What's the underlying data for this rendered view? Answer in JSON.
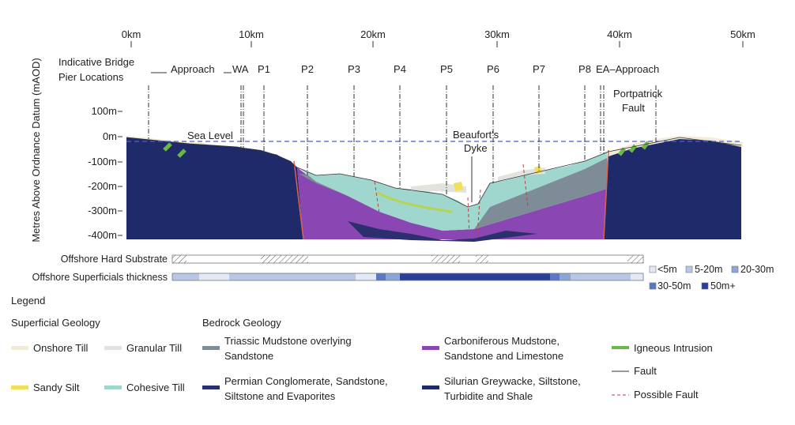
{
  "xaxis": {
    "ticks": [
      {
        "label": "0km",
        "km": 0
      },
      {
        "label": "10km",
        "km": 10
      },
      {
        "label": "20km",
        "km": 20
      },
      {
        "label": "30km",
        "km": 30
      },
      {
        "label": "40km",
        "km": 40
      },
      {
        "label": "50km",
        "km": 50
      }
    ]
  },
  "yaxis": {
    "label": "Metres Above Ordnance Datum (mAOD)",
    "ticks": [
      {
        "label": "100m",
        "value": 100
      },
      {
        "label": "0m",
        "value": 0
      },
      {
        "label": "-100m",
        "value": -100
      },
      {
        "label": "-200m",
        "value": -200
      },
      {
        "label": "-300m",
        "value": -300
      },
      {
        "label": "-400m",
        "value": -400
      }
    ]
  },
  "piers": {
    "title_line1": "Indicative Bridge",
    "title_line2": "Pier Locations",
    "approach_west": "Approach",
    "wa": "WA",
    "items": [
      "P1",
      "P2",
      "P3",
      "P4",
      "P5",
      "P6",
      "P7",
      "P8"
    ],
    "ea_approach": "EA–Approach"
  },
  "annotations": {
    "sea_level": "Sea Level",
    "beauforts_line1": "Beaufort's",
    "beauforts_line2": "Dyke",
    "portpatrick_line1": "Portpatrick",
    "portpatrick_line2": "Fault"
  },
  "strips": {
    "hard_substrate": "Offshore Hard Substrate",
    "superficials": "Offshore Superficials thickness",
    "thickness_classes": [
      {
        "label": "<5m",
        "color": "#e3eaf6"
      },
      {
        "label": "5-20m",
        "color": "#b7c7e6"
      },
      {
        "label": "20-30m",
        "color": "#8da6d8"
      },
      {
        "label": "30-50m",
        "color": "#5b78c8"
      },
      {
        "label": "50m+",
        "color": "#2a3f9a"
      }
    ]
  },
  "legend": {
    "title": "Legend",
    "superficial_title": "Superficial Geology",
    "bedrock_title": "Bedrock Geology",
    "onshore_till": "Onshore Till",
    "granular_till": "Granular Till",
    "sandy_silt": "Sandy Silt",
    "cohesive_till": "Cohesive Till",
    "triassic_line1": "Triassic Mudstone overlying",
    "triassic_line2": "Sandstone",
    "permian_line1": "Permian Conglomerate, Sandstone,",
    "permian_line2": "Siltstone and Evaporites",
    "carboniferous_line1": "Carboniferous Mudstone,",
    "carboniferous_line2": "Sandstone and Limestone",
    "silurian_line1": "Silurian Greywacke, Siltstone,",
    "silurian_line2": "Turbidite and Shale",
    "igneous": "Igneous Intrusion",
    "fault": "Fault",
    "possible_fault": "Possible Fault"
  },
  "colors": {
    "onshore_till": "#f3ead8",
    "granular_till": "#e2e2de",
    "sandy_silt": "#f2df5a",
    "cohesive_till": "#9fd7cf",
    "triassic": "#7e8c98",
    "permian": "#2c2f6e",
    "carboniferous": "#8a47b4",
    "silurian": "#1f2a6b",
    "igneous": "#6ab84a",
    "sea_level": "#4a5fc8"
  }
}
